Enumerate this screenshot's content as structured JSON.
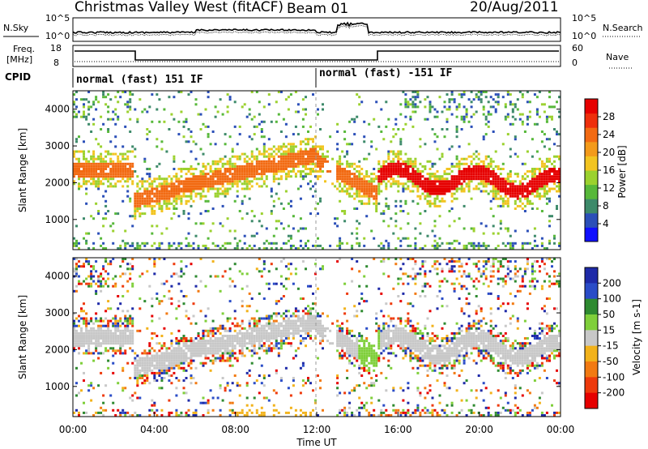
{
  "header": {
    "station": "Christmas Valley West (fitACF)",
    "beam": "Beam 01",
    "date": "20/Aug/2011"
  },
  "noise_panel": {
    "left_label": "N.Sky",
    "right_label": "N.Search",
    "left_ticks": [
      "10^5",
      "10^0"
    ],
    "right_ticks": [
      "10^5",
      "10^0"
    ]
  },
  "freq_panel": {
    "left_label_1": "Freq.",
    "left_label_2": "[MHz]",
    "right_label": "Nave",
    "left_ticks": [
      "18",
      "8"
    ],
    "right_ticks": [
      "60",
      "0"
    ]
  },
  "cpid": {
    "label": "CPID",
    "segment_1": "normal (fast) 151 IF",
    "segment_2": "normal (fast) -151 IF"
  },
  "chart_data": [
    {
      "type": "heatmap",
      "name": "Power",
      "ylabel": "Slant Range [km]",
      "xlabel": "",
      "y_ticks": [
        "1000",
        "2000",
        "3000",
        "4000"
      ],
      "ylim": [
        180,
        4500
      ],
      "colorbar_label": "Power [dB]",
      "colorbar_ticks": [
        "4",
        "8",
        "12",
        "16",
        "20",
        "24",
        "28"
      ],
      "colorbar_range": [
        0,
        30
      ],
      "colors": [
        "#1010ff",
        "#2b4fb8",
        "#3d8a6a",
        "#57b83a",
        "#9bd12e",
        "#f2c420",
        "#f39a1a",
        "#f26a12",
        "#ee2f0c",
        "#e60000"
      ]
    },
    {
      "type": "heatmap",
      "name": "Velocity",
      "ylabel": "Slant Range [km]",
      "xlabel": "Time UT",
      "x_ticks": [
        "00:00",
        "04:00",
        "08:00",
        "12:00",
        "16:00",
        "20:00",
        "00:00"
      ],
      "y_ticks": [
        "1000",
        "2000",
        "3000",
        "4000"
      ],
      "ylim": [
        180,
        4500
      ],
      "colorbar_label": "Velocity [m s-1]",
      "colorbar_ticks": [
        "200",
        "100",
        "50",
        "15",
        "-15",
        "-50",
        "-100",
        "-200"
      ],
      "colors": [
        "#1e2aa8",
        "#2a4cc7",
        "#2e8a30",
        "#7fcf3a",
        "#c8c8c8",
        "#f2b21b",
        "#f27a12",
        "#ee3a0c",
        "#e60000"
      ]
    }
  ]
}
